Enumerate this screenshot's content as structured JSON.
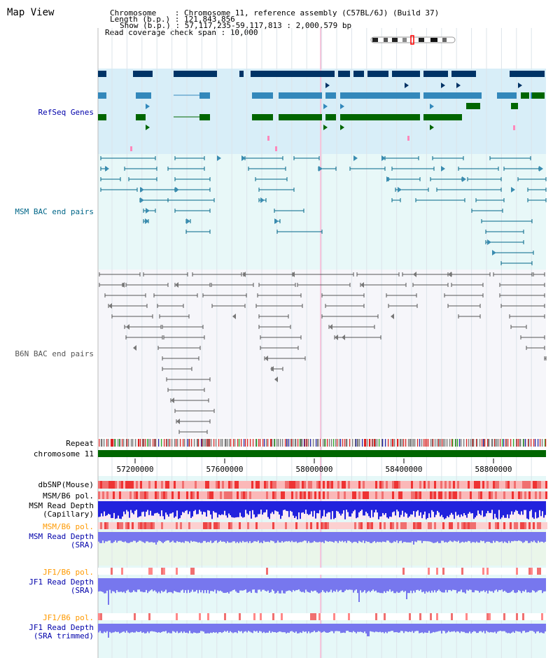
{
  "title": "Map View",
  "header": {
    "chromosome": "Chromosome    : Chromosome 11, reference assembly (C57BL/6J) (Build 37)",
    "length": "Length (b.p.) : 121,843,856",
    "show": "Show (b.p.) : 57,117,235-59,117,813 : 2,000,579 bp",
    "span": "Read coverage check span : 10,000"
  },
  "tracks": {
    "refseq": "RefSeq Genes",
    "msm_bac": "MSM BAC end pairs",
    "b6n_bac": "B6N BAC end pairs",
    "repeat": "Repeat",
    "chrom": "chromosome 11",
    "dbsnp": "dbSNP(Mouse)",
    "msm_b6_pol": "MSM/B6 pol.",
    "msm_depth_cap_1": "MSM Read Depth",
    "msm_depth_cap_2": "(Capillary)",
    "msm_b6_pol_2": "MSM/B6 pol.",
    "msm_depth_sra_1": "MSM Read Depth",
    "msm_depth_sra_2": "(SRA)",
    "jf1_pol": "JF1/B6 pol.",
    "jf1_depth_1": "JF1 Read Depth",
    "jf1_depth_2": "(SRA)",
    "jf1_pol_2": "JF1/B6 pol.",
    "jf1_trim_1": "JF1 Read Depth",
    "jf1_trim_2": "(SRA trimmed)"
  },
  "axis_ticks": [
    "57200000",
    "57600000",
    "58000000",
    "58400000",
    "58800000"
  ],
  "colors": {
    "refseq_dark": "#003366",
    "refseq_mid": "#3388bb",
    "refseq_green": "#006600",
    "msm_line": "#006688",
    "b6n_line": "#555555",
    "depth_blue": "#2222dd",
    "depth_lavender": "#7777ee"
  }
}
